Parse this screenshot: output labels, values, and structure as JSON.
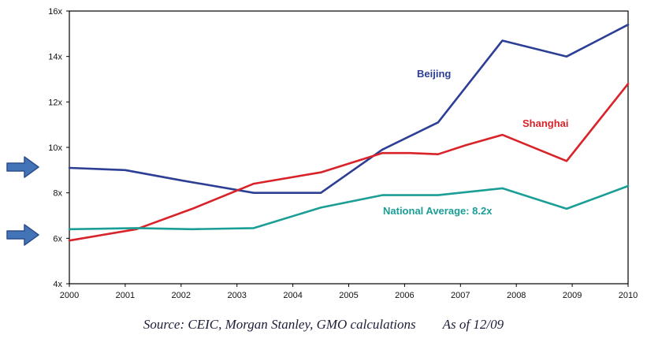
{
  "chart_data": {
    "type": "line",
    "title": "",
    "xlabel": "",
    "ylabel": "",
    "xlim": [
      2000,
      2010
    ],
    "ylim": [
      4,
      16
    ],
    "grid": false,
    "legend_position": "inline-annotations",
    "x_ticks": [
      2000,
      2001,
      2002,
      2003,
      2004,
      2005,
      2006,
      2007,
      2008,
      2009,
      2010
    ],
    "y_ticks": [
      {
        "value": 16,
        "label": "16x"
      },
      {
        "value": 14,
        "label": "14x"
      },
      {
        "value": 12,
        "label": "12x"
      },
      {
        "value": 10,
        "label": "10x"
      },
      {
        "value": 8,
        "label": "8x"
      },
      {
        "value": 6,
        "label": "6x"
      },
      {
        "value": 4,
        "label": "4x"
      }
    ],
    "series": [
      {
        "name": "Beijing",
        "color": "#2c3f94",
        "points": [
          [
            2000,
            9.1
          ],
          [
            2001,
            9.0
          ],
          [
            2002,
            8.55
          ],
          [
            2003.3,
            8.0
          ],
          [
            2004.5,
            8.0
          ],
          [
            2005.6,
            9.9
          ],
          [
            2006.6,
            11.1
          ],
          [
            2007.75,
            14.7
          ],
          [
            2008.9,
            14.0
          ],
          [
            2010,
            15.4
          ]
        ]
      },
      {
        "name": "Shanghai",
        "color": "#d8232a",
        "points": [
          [
            2000,
            5.9
          ],
          [
            2001.2,
            6.4
          ],
          [
            2002.2,
            7.3
          ],
          [
            2003.3,
            8.4
          ],
          [
            2004.5,
            8.9
          ],
          [
            2005.6,
            9.75
          ],
          [
            2006.1,
            9.75
          ],
          [
            2006.6,
            9.7
          ],
          [
            2007.1,
            10.1
          ],
          [
            2007.75,
            10.55
          ],
          [
            2008.9,
            9.4
          ],
          [
            2010,
            12.8
          ]
        ]
      },
      {
        "name": "National Average",
        "color": "#1b9e96",
        "points": [
          [
            2000,
            6.4
          ],
          [
            2001.2,
            6.45
          ],
          [
            2002.2,
            6.4
          ],
          [
            2003.3,
            6.45
          ],
          [
            2004.5,
            7.35
          ],
          [
            2005.6,
            7.9
          ],
          [
            2006.6,
            7.9
          ],
          [
            2007.75,
            8.2
          ],
          [
            2008.9,
            7.3
          ],
          [
            2010,
            8.3
          ]
        ]
      }
    ],
    "labels": {
      "beijing": {
        "text": "Beijing",
        "color": "#2c3f94"
      },
      "shanghai": {
        "text": "Shanghai",
        "color": "#d8232a"
      },
      "national": {
        "text": "National Average: 8.2x",
        "color": "#1b9e96"
      }
    },
    "axis_color": "#000000"
  },
  "arrows": {
    "color": "#4374b7",
    "border_color": "#2c4f8c"
  },
  "footer": {
    "source": "Source: CEIC, Morgan Stanley, GMO calculations",
    "as_of": "As of 12/09"
  }
}
